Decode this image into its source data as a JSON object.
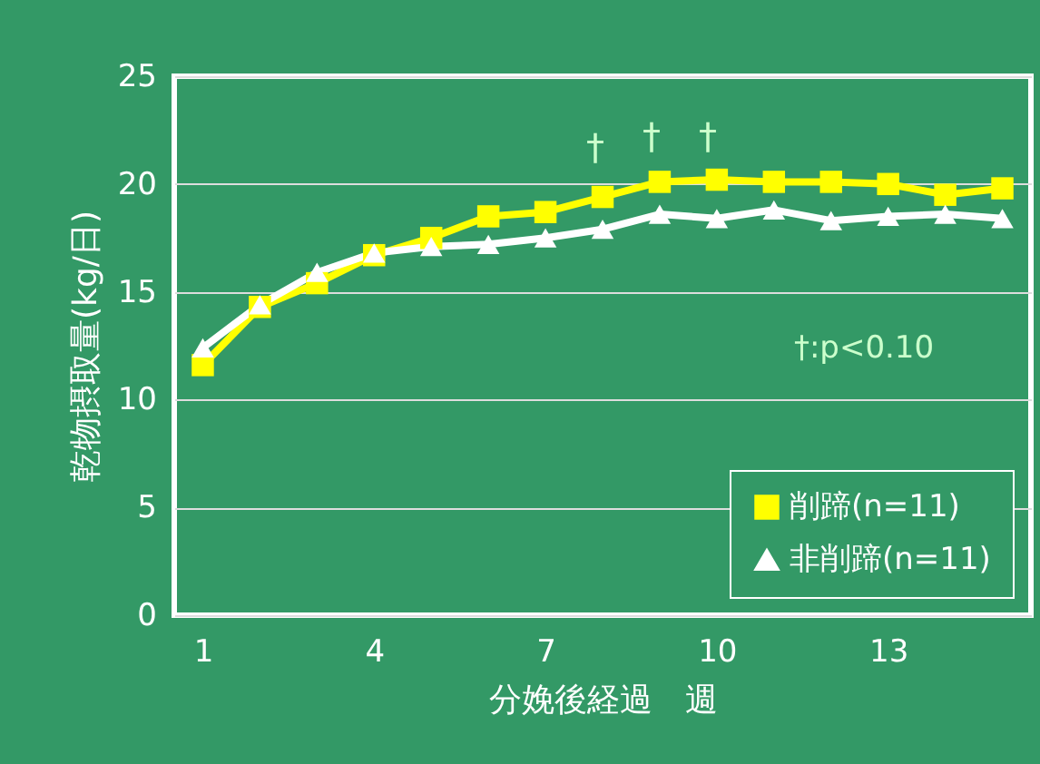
{
  "chart_data": {
    "type": "line",
    "xlabel": "分娩後経過　週",
    "ylabel": "乾物摂取量(kg/日)",
    "x": [
      1,
      2,
      3,
      4,
      5,
      6,
      7,
      8,
      9,
      10,
      11,
      12,
      13,
      14,
      15
    ],
    "xlim": [
      0.5,
      15.5
    ],
    "xticks": [
      1,
      4,
      7,
      10,
      13
    ],
    "ylim": [
      0,
      25
    ],
    "yticks": [
      0,
      5,
      10,
      15,
      20,
      25
    ],
    "grid": "y",
    "legend": "bottom right",
    "series": [
      {
        "name": "削蹄(n=11)",
        "color": "#ffff00",
        "marker": "square",
        "values": [
          11.6,
          14.3,
          15.4,
          16.7,
          17.5,
          18.5,
          18.7,
          19.4,
          20.1,
          20.2,
          20.1,
          20.1,
          20.0,
          19.5,
          19.8
        ]
      },
      {
        "name": "非削蹄(n=11)",
        "color": "#ffffff",
        "marker": "triangle",
        "values": [
          12.4,
          14.4,
          15.9,
          16.8,
          17.1,
          17.2,
          17.5,
          17.9,
          18.6,
          18.4,
          18.8,
          18.3,
          18.5,
          18.6,
          18.4
        ]
      }
    ],
    "annotations": [
      "†",
      "†",
      "†",
      "†:p<0.10"
    ]
  }
}
